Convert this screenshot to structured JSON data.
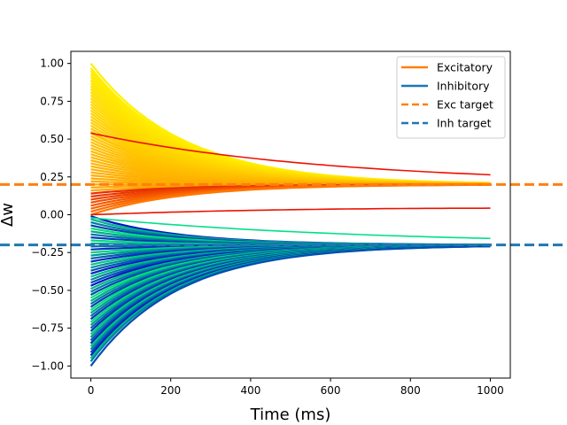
{
  "chart_data": {
    "type": "line",
    "xlabel": "Time (ms)",
    "ylabel": "Δw",
    "xlim": [
      -50,
      1050
    ],
    "ylim": [
      -1.08,
      1.08
    ],
    "xticks": [
      0,
      200,
      400,
      600,
      800,
      1000
    ],
    "xtick_labels": [
      "0",
      "200",
      "400",
      "600",
      "800",
      "1000"
    ],
    "yticks": [
      -1.0,
      -0.75,
      -0.5,
      -0.25,
      0.0,
      0.25,
      0.5,
      0.75,
      1.0
    ],
    "ytick_labels": [
      "−1.00",
      "−0.75",
      "−0.50",
      "−0.25",
      "0.00",
      "0.25",
      "0.50",
      "0.75",
      "1.00"
    ],
    "grid": false,
    "legend_position": "top-right",
    "legend": [
      {
        "label": "Excitatory",
        "color": "#ff7f0e",
        "style": "solid"
      },
      {
        "label": "Inhibitory",
        "color": "#1f77b4",
        "style": "solid"
      },
      {
        "label": "Exc target",
        "color": "#ff7f0e",
        "style": "dashed"
      },
      {
        "label": "Inh target",
        "color": "#1f77b4",
        "style": "dashed"
      }
    ],
    "series": [
      {
        "name": "Excitatory",
        "x_range": [
          0,
          1000
        ],
        "target": 0.2,
        "start_values": [
          1.0,
          0.97,
          0.95,
          0.93,
          0.91,
          0.89,
          0.87,
          0.85,
          0.83,
          0.81,
          0.79,
          0.77,
          0.75,
          0.73,
          0.71,
          0.69,
          0.67,
          0.65,
          0.63,
          0.61,
          0.59,
          0.57,
          0.55,
          0.54,
          0.52,
          0.5,
          0.48,
          0.46,
          0.44,
          0.42,
          0.4,
          0.38,
          0.36,
          0.34,
          0.32,
          0.3,
          0.28,
          0.26,
          0.24,
          0.22,
          0.2,
          0.18,
          0.16,
          0.14,
          0.12,
          0.1,
          0.08,
          0.06,
          0.04,
          0.02,
          0.0
        ],
        "end_values_approx": [
          0.21,
          0.13
        ],
        "colormap": "autumn (red to yellow)"
      },
      {
        "name": "Inhibitory",
        "x_range": [
          0,
          1000
        ],
        "target": -0.2,
        "start_values": [
          -0.01,
          -0.03,
          -0.05,
          -0.07,
          -0.09,
          -0.11,
          -0.13,
          -0.15,
          -0.17,
          -0.19,
          -0.21,
          -0.23,
          -0.25,
          -0.27,
          -0.29,
          -0.31,
          -0.33,
          -0.35,
          -0.37,
          -0.39,
          -0.41,
          -0.43,
          -0.45,
          -0.47,
          -0.49,
          -0.51,
          -0.53,
          -0.55,
          -0.57,
          -0.59,
          -0.61,
          -0.63,
          -0.65,
          -0.67,
          -0.69,
          -0.71,
          -0.73,
          -0.75,
          -0.77,
          -0.79,
          -0.81,
          -0.83,
          -0.85,
          -0.87,
          -0.89,
          -0.91,
          -0.93,
          -0.95,
          -0.97,
          -1.0
        ],
        "end_values_approx": [
          -0.16,
          -0.23
        ],
        "colormap": "winter (blue to green)"
      },
      {
        "name": "Exc target",
        "y": 0.2
      },
      {
        "name": "Inh target",
        "y": -0.2
      }
    ]
  }
}
